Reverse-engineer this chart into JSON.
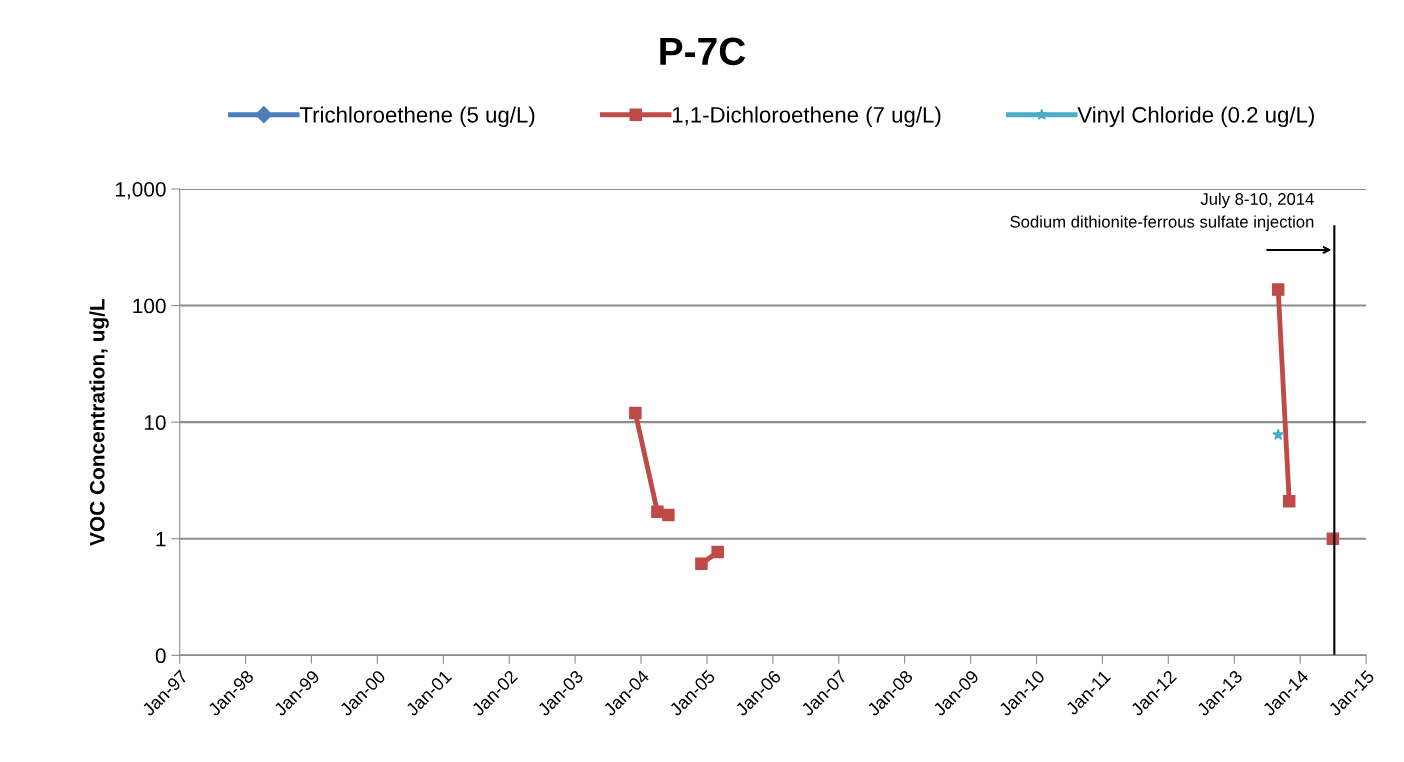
{
  "chart_data": {
    "type": "line",
    "title": "P-7C",
    "ylabel": "VOC Concentration, ug/L",
    "log": "y",
    "grid": "y",
    "legend": "top",
    "xlim": [
      "1997-01-01",
      "2015-01-01"
    ],
    "xticks": [
      {
        "value": "1997-01-01",
        "label": "Jan-97"
      },
      {
        "value": "1998-01-01",
        "label": "Jan-98"
      },
      {
        "value": "1999-01-01",
        "label": "Jan-99"
      },
      {
        "value": "2000-01-01",
        "label": "Jan-00"
      },
      {
        "value": "2001-01-01",
        "label": "Jan-01"
      },
      {
        "value": "2002-01-01",
        "label": "Jan-02"
      },
      {
        "value": "2003-01-01",
        "label": "Jan-03"
      },
      {
        "value": "2004-01-01",
        "label": "Jan-04"
      },
      {
        "value": "2005-01-01",
        "label": "Jan-05"
      },
      {
        "value": "2006-01-01",
        "label": "Jan-06"
      },
      {
        "value": "2007-01-01",
        "label": "Jan-07"
      },
      {
        "value": "2008-01-01",
        "label": "Jan-08"
      },
      {
        "value": "2009-01-01",
        "label": "Jan-09"
      },
      {
        "value": "2010-01-01",
        "label": "Jan-10"
      },
      {
        "value": "2011-01-01",
        "label": "Jan-11"
      },
      {
        "value": "2012-01-01",
        "label": "Jan-12"
      },
      {
        "value": "2013-01-01",
        "label": "Jan-13"
      },
      {
        "value": "2014-01-01",
        "label": "Jan-14"
      },
      {
        "value": "2015-01-01",
        "label": "Jan-15"
      }
    ],
    "ylim": [
      0.1,
      1000
    ],
    "yticks": [
      {
        "value": 0.1,
        "label": "0"
      },
      1,
      10,
      100,
      {
        "value": 1000,
        "label": "1,000"
      }
    ],
    "series": [
      {
        "name": "Trichloroethene (5 ug/L)",
        "color": "#4a7ebb",
        "marker": "diamond"
      },
      {
        "name": "1,1-Dichloroethene (7 ug/L)",
        "color": "#be4b48",
        "marker": "square",
        "x": [
          "2003-12-01",
          "2004-04-01",
          "2004-06-01",
          "2004-09-01",
          "2004-12-01",
          "2005-03-01",
          "2013-06-01",
          "2013-09-01",
          "2013-11-01",
          "2014-03-01",
          "2014-07-01"
        ],
        "values": [
          12,
          1.7,
          1.6,
          null,
          0.61,
          0.77,
          null,
          137,
          2.1,
          null,
          1
        ]
      },
      {
        "name": "Vinyl Chloride (0.2 ug/L)",
        "color": "#4bacc6",
        "marker": "star",
        "x": [
          "2013-09-01"
        ],
        "values": [
          7.8
        ]
      }
    ],
    "ref_lines": [
      {
        "axis": "x",
        "value": "2014-07-09",
        "label": "July 8-10, 2014\nSodium dithionite-ferrous sulfate injection",
        "color": "#000000"
      }
    ]
  }
}
